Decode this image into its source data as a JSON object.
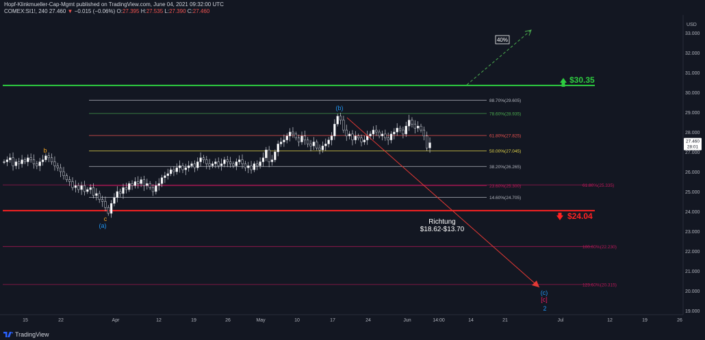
{
  "header": {
    "line1": "Hopf-Klinkmueller-Cap-Mgmt published on TradingView.com, June 04, 2021 09:32:00 UTC",
    "symbol": "COMEX:SI1!, 240",
    "last": "27.460",
    "change": "−0.015 (−0.06%)",
    "o_label": "O:",
    "o": "27.395",
    "h_label": "H:",
    "h": "27.535",
    "l_label": "L:",
    "l": "27.390",
    "c_label": "C:",
    "c": "27.460"
  },
  "footer": {
    "brand": "TradingView"
  },
  "chart_data": {
    "type": "candlestick",
    "y_axis": {
      "unit": "USD",
      "range": [
        19.0,
        33.0
      ],
      "ticks": [
        "33.000",
        "32.000",
        "31.000",
        "30.000",
        "29.000",
        "28.000",
        "27.000",
        "26.000",
        "25.000",
        "24.000",
        "23.000",
        "22.000",
        "21.000",
        "20.000",
        "19.000"
      ]
    },
    "price_box": {
      "price": "27.460",
      "countdown": "28:01"
    },
    "x_axis": {
      "ticks": [
        "15",
        "22",
        "Apr",
        "12",
        "19",
        "26",
        "May",
        "10",
        "17",
        "24",
        "Jun",
        "14:00",
        "14",
        "21",
        "Jul",
        "12",
        "19",
        "26"
      ]
    },
    "closes": [
      26.5,
      26.6,
      26.7,
      26.3,
      26.5,
      26.4,
      26.6,
      26.5,
      26.7,
      26.6,
      26.4,
      26.3,
      26.5,
      26.6,
      26.8,
      26.7,
      26.5,
      26.3,
      26.2,
      26.0,
      25.8,
      25.6,
      25.5,
      25.2,
      25.3,
      25.1,
      25.3,
      25.0,
      25.1,
      25.2,
      24.8,
      24.9,
      24.6,
      24.5,
      24.2,
      23.9,
      24.4,
      24.7,
      25.0,
      24.9,
      25.2,
      25.1,
      25.4,
      25.3,
      25.5,
      25.4,
      25.6,
      25.3,
      25.4,
      25.2,
      25.0,
      25.3,
      25.4,
      25.7,
      25.8,
      25.9,
      26.1,
      26.0,
      26.2,
      26.3,
      26.1,
      26.2,
      26.3,
      26.4,
      26.2,
      26.5,
      26.7,
      26.6,
      26.4,
      26.3,
      26.4,
      26.5,
      26.3,
      26.4,
      26.6,
      26.5,
      26.4,
      26.3,
      26.5,
      26.6,
      26.4,
      26.2,
      26.3,
      26.1,
      26.4,
      26.3,
      26.5,
      26.7,
      27.1,
      26.5,
      26.6,
      27.0,
      27.4,
      27.5,
      27.6,
      27.8,
      28.0,
      27.9,
      27.7,
      27.5,
      27.8,
      27.6,
      27.4,
      27.3,
      27.5,
      27.2,
      27.1,
      27.3,
      27.4,
      27.6,
      27.8,
      28.4,
      28.8,
      28.6,
      28.1,
      27.8,
      27.9,
      27.6,
      27.8,
      27.7,
      27.5,
      27.6,
      27.8,
      27.9,
      28.1,
      28.0,
      27.8,
      27.9,
      27.7,
      27.6,
      27.9,
      28.0,
      28.2,
      28.1,
      27.9,
      28.3,
      28.6,
      28.4,
      28.2,
      28.3,
      28.1,
      27.8,
      27.2,
      27.46
    ],
    "horizontal_levels": [
      {
        "price": 30.35,
        "color": "#2ecc40",
        "label": "$30.35",
        "arrow": "up"
      },
      {
        "price": 24.04,
        "color": "#ff2222",
        "label": "$24.04",
        "arrow": "down"
      }
    ],
    "fib_retracement": [
      {
        "level": "88.70%",
        "price": "29.605",
        "color": "#b2b5be"
      },
      {
        "level": "78.60%",
        "price": "28.935",
        "color": "#4caf50"
      },
      {
        "level": "61.80%",
        "price": "27.825",
        "color": "#ef5350"
      },
      {
        "level": "50.00%",
        "price": "27.045",
        "color": "#e6d74a"
      },
      {
        "level": "38.20%",
        "price": "26.265",
        "color": "#b2b5be"
      },
      {
        "level": "23.60%",
        "price": "25.300",
        "color": "#c2185b"
      },
      {
        "level": "14.60%",
        "price": "24.705",
        "color": "#b2b5be"
      }
    ],
    "fib_extension": [
      {
        "level": "61.80%",
        "price": "25.335",
        "color": "#c2185b"
      },
      {
        "level": "100.00%",
        "price": "22.230",
        "color": "#c2185b"
      },
      {
        "level": "123.60%",
        "price": "20.315",
        "color": "#c2185b"
      }
    ],
    "wave_labels": [
      "b",
      "c",
      "(a)",
      "(b)",
      "(c)",
      "[c]",
      "2"
    ],
    "annotations": {
      "percent_box": "40%",
      "target_line1": "Richtung",
      "target_line2": "$18.62-$13.70"
    }
  }
}
